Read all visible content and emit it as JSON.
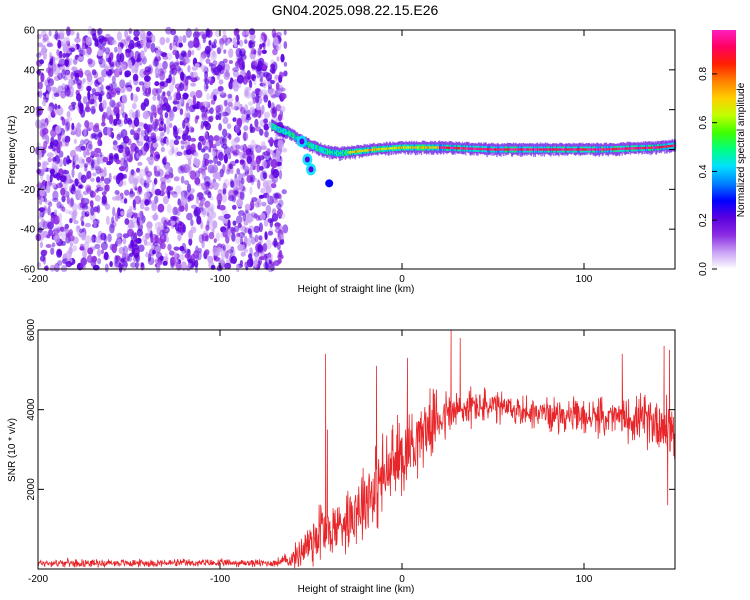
{
  "title": "GN04.2025.098.22.15.E26",
  "chart_data": [
    {
      "type": "heatmap",
      "xlabel": "Height of straight line (km)",
      "ylabel": "Frequency (Hz)",
      "xlim": [
        -200,
        150
      ],
      "ylim": [
        -60,
        60
      ],
      "xticks": [
        -200,
        -100,
        0,
        100
      ],
      "yticks": [
        60,
        40,
        20,
        0,
        -20,
        -40,
        -60
      ],
      "colorbar": {
        "label": "Normalized spectral amplitude",
        "range": [
          0,
          0.98
        ],
        "ticks": [
          "0.0",
          "0.2",
          "0.4",
          "0.6",
          "0.8"
        ],
        "colors": [
          "#ffffff",
          "#c8a0f5",
          "#8a2be2",
          "#5b00e0",
          "#0000ff",
          "#0080ff",
          "#00e0ff",
          "#00ff80",
          "#40ff00",
          "#c0ff00",
          "#ffd000",
          "#ff8000",
          "#ff2000",
          "#ff0060",
          "#ff20c0"
        ]
      },
      "noise_region_x": [
        -200,
        -70
      ],
      "signal": [
        {
          "x": -72,
          "f": 12
        },
        {
          "x": -68,
          "f": 10
        },
        {
          "x": -62,
          "f": 8
        },
        {
          "x": -57,
          "f": 5
        },
        {
          "x": -53,
          "f": 3
        },
        {
          "x": -48,
          "f": 1
        },
        {
          "x": -42,
          "f": -1
        },
        {
          "x": -35,
          "f": -2
        },
        {
          "x": -25,
          "f": -1
        },
        {
          "x": -15,
          "f": 0
        },
        {
          "x": 0,
          "f": 1
        },
        {
          "x": 20,
          "f": 1
        },
        {
          "x": 50,
          "f": 0
        },
        {
          "x": 80,
          "f": 0
        },
        {
          "x": 110,
          "f": 0
        },
        {
          "x": 140,
          "f": 1
        },
        {
          "x": 150,
          "f": 2
        }
      ],
      "branch": [
        {
          "x": -55,
          "f": 4
        },
        {
          "x": -52,
          "f": -5
        },
        {
          "x": -50,
          "f": -10
        }
      ],
      "blob": {
        "x": -40,
        "f": -17
      }
    },
    {
      "type": "line",
      "xlabel": "Height of straight line (km)",
      "ylabel": "SNR (10 * v/v)",
      "xlim": [
        -200,
        150
      ],
      "ylim": [
        0,
        6000
      ],
      "xticks": [
        -200,
        -100,
        0,
        100
      ],
      "yticks": [
        2000,
        4000,
        6000
      ],
      "color": "#e8262a",
      "envelope": [
        {
          "x": -200,
          "base": 150,
          "amp": 120
        },
        {
          "x": -70,
          "base": 150,
          "amp": 120
        },
        {
          "x": -60,
          "base": 250,
          "amp": 300
        },
        {
          "x": -50,
          "base": 700,
          "amp": 900
        },
        {
          "x": -45,
          "base": 1000,
          "amp": 1200
        },
        {
          "x": -40,
          "base": 900,
          "amp": 800
        },
        {
          "x": -30,
          "base": 1300,
          "amp": 1000
        },
        {
          "x": -20,
          "base": 1800,
          "amp": 1300
        },
        {
          "x": -10,
          "base": 2300,
          "amp": 1400
        },
        {
          "x": 0,
          "base": 2900,
          "amp": 1300
        },
        {
          "x": 10,
          "base": 3400,
          "amp": 1100
        },
        {
          "x": 20,
          "base": 3800,
          "amp": 900
        },
        {
          "x": 40,
          "base": 4100,
          "amp": 600
        },
        {
          "x": 60,
          "base": 4000,
          "amp": 500
        },
        {
          "x": 80,
          "base": 3900,
          "amp": 500
        },
        {
          "x": 100,
          "base": 3800,
          "amp": 550
        },
        {
          "x": 120,
          "base": 3800,
          "amp": 600
        },
        {
          "x": 140,
          "base": 3700,
          "amp": 900
        },
        {
          "x": 150,
          "base": 3500,
          "amp": 1200
        }
      ],
      "spikes": [
        {
          "x": -42,
          "y": 5400
        },
        {
          "x": -41,
          "y": 3500
        },
        {
          "x": -14,
          "y": 5100
        },
        {
          "x": 3,
          "y": 5300
        },
        {
          "x": 27,
          "y": 6000
        },
        {
          "x": 32,
          "y": 5800
        },
        {
          "x": 121,
          "y": 5400
        },
        {
          "x": 144,
          "y": 5600
        },
        {
          "x": 147,
          "y": 5500
        },
        {
          "x": 146,
          "y": 1600
        }
      ]
    }
  ]
}
